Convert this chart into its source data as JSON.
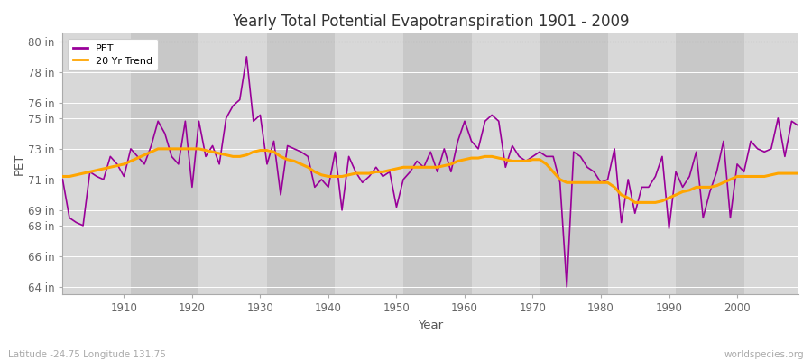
{
  "title": "Yearly Total Potential Evapotranspiration 1901 - 2009",
  "xlabel": "Year",
  "ylabel": "PET",
  "lat_lon_label": "Latitude -24.75 Longitude 131.75",
  "watermark": "worldspecies.org",
  "pet_color": "#990099",
  "trend_color": "#FFA500",
  "fig_bg_color": "#ffffff",
  "plot_bg_color": "#d8d8d8",
  "stripe_color": "#c8c8c8",
  "ylim": [
    63.5,
    80.5
  ],
  "yticks": [
    64,
    66,
    68,
    69,
    71,
    73,
    75,
    76,
    78,
    80
  ],
  "ytick_labels": [
    "64 in",
    "66 in",
    "68 in",
    "69 in",
    "71 in",
    "73 in",
    "75 in",
    "76 in",
    "78 in",
    "80 in"
  ],
  "xlim": [
    1901,
    2009
  ],
  "xticks": [
    1910,
    1920,
    1930,
    1940,
    1950,
    1960,
    1970,
    1980,
    1990,
    2000
  ],
  "years": [
    1901,
    1902,
    1903,
    1904,
    1905,
    1906,
    1907,
    1908,
    1909,
    1910,
    1911,
    1912,
    1913,
    1914,
    1915,
    1916,
    1917,
    1918,
    1919,
    1920,
    1921,
    1922,
    1923,
    1924,
    1925,
    1926,
    1927,
    1928,
    1929,
    1930,
    1931,
    1932,
    1933,
    1934,
    1935,
    1936,
    1937,
    1938,
    1939,
    1940,
    1941,
    1942,
    1943,
    1944,
    1945,
    1946,
    1947,
    1948,
    1949,
    1950,
    1951,
    1952,
    1953,
    1954,
    1955,
    1956,
    1957,
    1958,
    1959,
    1960,
    1961,
    1962,
    1963,
    1964,
    1965,
    1966,
    1967,
    1968,
    1969,
    1970,
    1971,
    1972,
    1973,
    1974,
    1975,
    1976,
    1977,
    1978,
    1979,
    1980,
    1981,
    1982,
    1983,
    1984,
    1985,
    1986,
    1987,
    1988,
    1989,
    1990,
    1991,
    1992,
    1993,
    1994,
    1995,
    1996,
    1997,
    1998,
    1999,
    2000,
    2001,
    2002,
    2003,
    2004,
    2005,
    2006,
    2007,
    2008,
    2009
  ],
  "pet": [
    71.0,
    68.5,
    68.2,
    68.0,
    71.5,
    71.2,
    71.0,
    72.5,
    72.0,
    71.2,
    73.0,
    72.5,
    72.0,
    73.2,
    74.8,
    74.0,
    72.5,
    72.0,
    74.8,
    70.5,
    74.8,
    72.5,
    73.2,
    72.0,
    75.0,
    75.8,
    76.2,
    79.0,
    74.8,
    75.2,
    72.0,
    73.5,
    70.0,
    73.2,
    73.0,
    72.8,
    72.5,
    70.5,
    71.0,
    70.5,
    72.8,
    69.0,
    72.5,
    71.5,
    70.8,
    71.2,
    71.8,
    71.2,
    71.5,
    69.2,
    71.0,
    71.5,
    72.2,
    71.8,
    72.8,
    71.5,
    73.0,
    71.5,
    73.5,
    74.8,
    73.5,
    73.0,
    74.8,
    75.2,
    74.8,
    71.8,
    73.2,
    72.5,
    72.2,
    72.5,
    72.8,
    72.5,
    72.5,
    70.8,
    64.0,
    72.8,
    72.5,
    71.8,
    71.5,
    70.8,
    71.0,
    73.0,
    68.2,
    71.0,
    68.8,
    70.5,
    70.5,
    71.2,
    72.5,
    67.8,
    71.5,
    70.5,
    71.2,
    72.8,
    68.5,
    70.2,
    71.5,
    73.5,
    68.5,
    72.0,
    71.5,
    73.5,
    73.0,
    72.8,
    73.0,
    75.0,
    72.5,
    74.8,
    74.5
  ],
  "trend": [
    71.2,
    71.2,
    71.3,
    71.4,
    71.5,
    71.6,
    71.7,
    71.8,
    71.9,
    72.0,
    72.2,
    72.4,
    72.6,
    72.8,
    73.0,
    73.0,
    73.0,
    73.0,
    73.0,
    73.0,
    73.0,
    72.9,
    72.8,
    72.7,
    72.6,
    72.5,
    72.5,
    72.6,
    72.8,
    72.9,
    72.9,
    72.8,
    72.5,
    72.3,
    72.2,
    72.0,
    71.8,
    71.5,
    71.3,
    71.2,
    71.2,
    71.2,
    71.3,
    71.4,
    71.4,
    71.4,
    71.5,
    71.5,
    71.6,
    71.7,
    71.8,
    71.8,
    71.8,
    71.8,
    71.8,
    71.8,
    71.9,
    72.0,
    72.2,
    72.3,
    72.4,
    72.4,
    72.5,
    72.5,
    72.4,
    72.3,
    72.2,
    72.2,
    72.2,
    72.3,
    72.3,
    72.0,
    71.5,
    71.0,
    70.8,
    70.8,
    70.8,
    70.8,
    70.8,
    70.8,
    70.8,
    70.5,
    70.0,
    69.8,
    69.5,
    69.5,
    69.5,
    69.5,
    69.6,
    69.8,
    70.0,
    70.2,
    70.3,
    70.5,
    70.5,
    70.5,
    70.6,
    70.8,
    71.0,
    71.2,
    71.2,
    71.2,
    71.2,
    71.2,
    71.3,
    71.4,
    71.4,
    71.4,
    71.4
  ]
}
